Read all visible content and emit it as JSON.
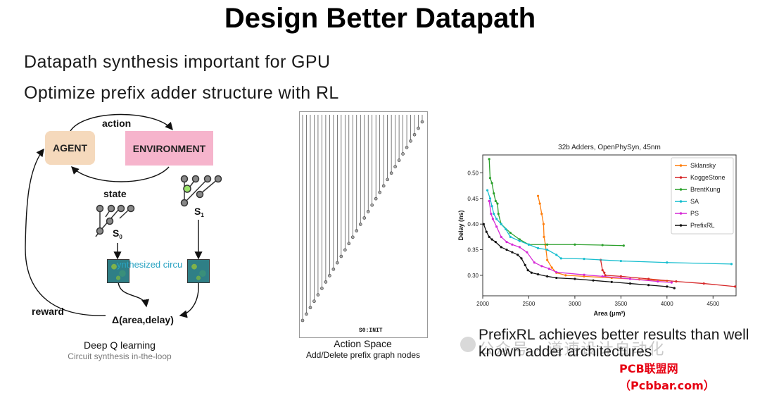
{
  "slide": {
    "title": "Design Better Datapath",
    "bullet_1": "Datapath synthesis important for GPU",
    "bullet_2": "Optimize prefix adder structure with RL"
  },
  "rl_loop": {
    "agent": "AGENT",
    "environment": "ENVIRONMENT",
    "action": "action",
    "state": "state",
    "s0": "S",
    "s0_sub": "0",
    "s1": "S",
    "s1_sub": "1",
    "synthesized": "ynthesized circu",
    "delta": "Δ(area,delay)",
    "reward": "reward",
    "caption": "Deep Q learning",
    "caption_sub": "Circuit synthesis in-the-loop"
  },
  "action_space": {
    "state_label": "S0:INIT",
    "caption": "Action Space",
    "caption_sub": "Add/Delete prefix graph nodes"
  },
  "chart_data": {
    "type": "line",
    "title": "32b Adders, OpenPhySyn, 45nm",
    "xlabel": "Area (μm²)",
    "ylabel": "Delay (ns)",
    "xlim": [
      2000,
      4750
    ],
    "ylim": [
      0.26,
      0.535
    ],
    "xticks": [
      "2000",
      "2500",
      "3000",
      "3500",
      "4000",
      "4500"
    ],
    "yticks": [
      "0.30",
      "0.35",
      "0.40",
      "0.45",
      "0.50"
    ],
    "legend_position": "top-right",
    "grid": false,
    "series": [
      {
        "name": "Sklansky",
        "color": "#ff7f0e",
        "points": [
          [
            2600,
            0.455
          ],
          [
            2620,
            0.44
          ],
          [
            2640,
            0.42
          ],
          [
            2660,
            0.4
          ],
          [
            2665,
            0.375
          ],
          [
            2680,
            0.36
          ],
          [
            2700,
            0.33
          ],
          [
            2750,
            0.315
          ],
          [
            2800,
            0.305
          ],
          [
            2900,
            0.3
          ],
          [
            3100,
            0.298
          ],
          [
            3400,
            0.295
          ],
          [
            3700,
            0.292
          ],
          [
            4000,
            0.289
          ]
        ]
      },
      {
        "name": "KoggeStone",
        "color": "#d62728",
        "points": [
          [
            3280,
            0.33
          ],
          [
            3300,
            0.31
          ],
          [
            3320,
            0.305
          ],
          [
            3330,
            0.3
          ],
          [
            3500,
            0.298
          ],
          [
            3800,
            0.293
          ],
          [
            4100,
            0.288
          ],
          [
            4400,
            0.284
          ],
          [
            4740,
            0.278
          ]
        ]
      },
      {
        "name": "BrentKung",
        "color": "#2ca02c",
        "points": [
          [
            2070,
            0.527
          ],
          [
            2080,
            0.49
          ],
          [
            2100,
            0.48
          ],
          [
            2120,
            0.46
          ],
          [
            2140,
            0.445
          ],
          [
            2160,
            0.44
          ],
          [
            2170,
            0.42
          ],
          [
            2200,
            0.4
          ],
          [
            2300,
            0.383
          ],
          [
            2400,
            0.37
          ],
          [
            2500,
            0.36
          ],
          [
            2700,
            0.36
          ],
          [
            3000,
            0.36
          ],
          [
            3300,
            0.359
          ],
          [
            3530,
            0.358
          ]
        ]
      },
      {
        "name": "SA",
        "color": "#17becf",
        "points": [
          [
            2050,
            0.466
          ],
          [
            2080,
            0.45
          ],
          [
            2100,
            0.435
          ],
          [
            2120,
            0.42
          ],
          [
            2150,
            0.41
          ],
          [
            2200,
            0.4
          ],
          [
            2250,
            0.39
          ],
          [
            2300,
            0.375
          ],
          [
            2400,
            0.367
          ],
          [
            2500,
            0.36
          ],
          [
            2600,
            0.353
          ],
          [
            2700,
            0.35
          ],
          [
            2800,
            0.34
          ],
          [
            2850,
            0.333
          ],
          [
            3100,
            0.332
          ],
          [
            3500,
            0.328
          ],
          [
            4000,
            0.325
          ],
          [
            4700,
            0.322
          ]
        ]
      },
      {
        "name": "PS",
        "color": "#d62bd6",
        "points": [
          [
            2070,
            0.445
          ],
          [
            2090,
            0.42
          ],
          [
            2110,
            0.41
          ],
          [
            2150,
            0.395
          ],
          [
            2200,
            0.375
          ],
          [
            2260,
            0.365
          ],
          [
            2320,
            0.36
          ],
          [
            2400,
            0.355
          ],
          [
            2480,
            0.345
          ],
          [
            2560,
            0.325
          ],
          [
            2640,
            0.318
          ],
          [
            2720,
            0.313
          ],
          [
            2800,
            0.306
          ],
          [
            3100,
            0.301
          ],
          [
            3300,
            0.298
          ],
          [
            3600,
            0.293
          ],
          [
            3900,
            0.288
          ],
          [
            4050,
            0.286
          ]
        ]
      },
      {
        "name": "PrefixRL",
        "color": "#111111",
        "points": [
          [
            2010,
            0.4
          ],
          [
            2040,
            0.385
          ],
          [
            2070,
            0.375
          ],
          [
            2100,
            0.37
          ],
          [
            2140,
            0.365
          ],
          [
            2200,
            0.355
          ],
          [
            2260,
            0.35
          ],
          [
            2320,
            0.345
          ],
          [
            2380,
            0.34
          ],
          [
            2420,
            0.333
          ],
          [
            2460,
            0.32
          ],
          [
            2490,
            0.31
          ],
          [
            2530,
            0.305
          ],
          [
            2600,
            0.302
          ],
          [
            2700,
            0.298
          ],
          [
            2800,
            0.295
          ],
          [
            3000,
            0.293
          ],
          [
            3200,
            0.29
          ],
          [
            3400,
            0.287
          ],
          [
            3600,
            0.284
          ],
          [
            3800,
            0.281
          ],
          [
            4000,
            0.278
          ],
          [
            4080,
            0.275
          ]
        ]
      }
    ]
  },
  "result": {
    "text": "PrefixRL achieves better results than well known adder architectures",
    "watermark": "公众号 · 道速设计自动化",
    "site": "PCB联盟网（Pcbbar.com）"
  }
}
